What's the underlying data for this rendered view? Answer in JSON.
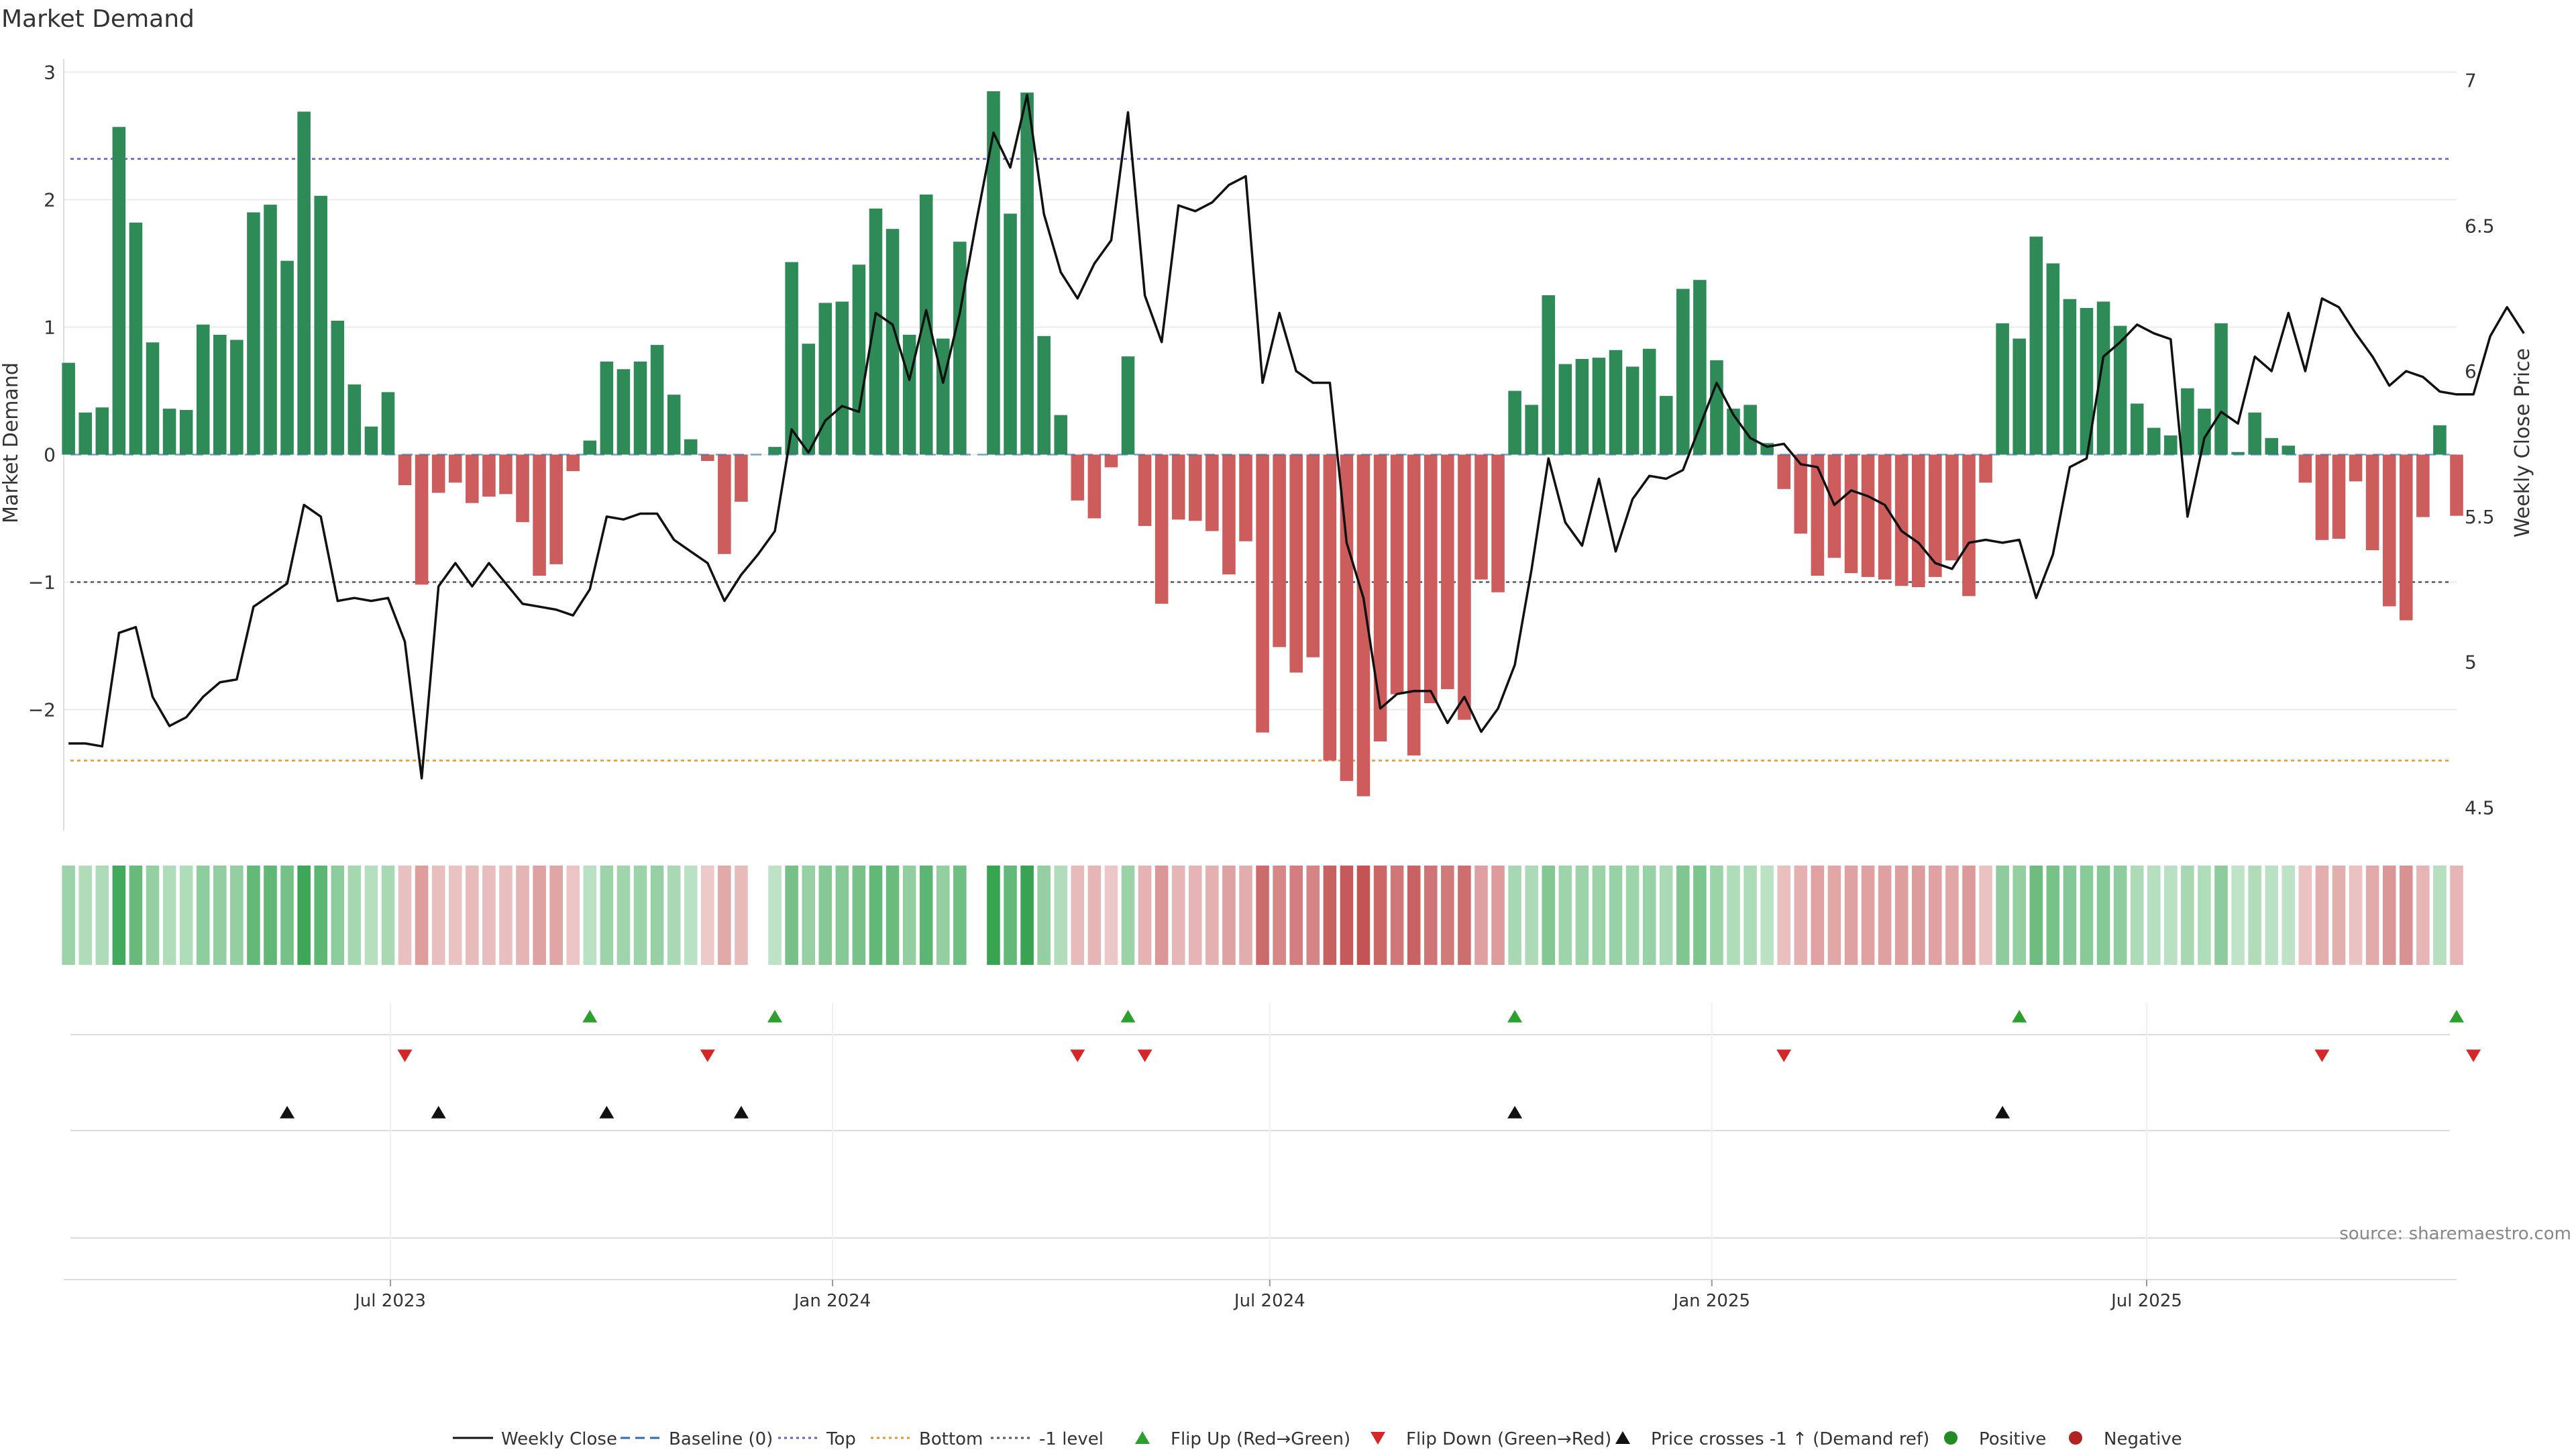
{
  "title": "Market Demand",
  "source": "source: sharemaestro.com",
  "chart_data": {
    "type": "bar",
    "ylabel_left": "Market Demand",
    "ylabel_right": "Weekly Close Price",
    "y_left_range": [
      -2.95,
      3.05
    ],
    "y_left_ticks": [
      3,
      2,
      1,
      0,
      -1,
      -2
    ],
    "y_left_tick_labels": [
      "3",
      "2",
      "1",
      "0",
      "−1",
      "−2"
    ],
    "y_right_range": [
      4.42,
      7.05
    ],
    "y_right_ticks": [
      7,
      6.5,
      6,
      5.5,
      5,
      4.5
    ],
    "y_right_tick_labels": [
      "7",
      "6.5",
      "6",
      "5.5",
      "5",
      "4.5"
    ],
    "x_range": [
      "2023-02-15",
      "2025-11-07"
    ],
    "x_ticks": [
      "2023-07-01",
      "2024-01-01",
      "2024-07-01",
      "2025-01-01",
      "2025-07-01"
    ],
    "x_tick_labels": [
      "Jul 2023",
      "Jan 2024",
      "Jul 2024",
      "Jan 2025",
      "Jul 2025"
    ],
    "grid": true,
    "reference_lines": [
      {
        "name": "Top",
        "value": 2.32,
        "color": "#6a5acd",
        "style": "dotted"
      },
      {
        "name": "Bottom",
        "value": -2.4,
        "color": "#e8962a",
        "style": "dotted"
      },
      {
        "name": "-1 level",
        "value": -1,
        "color": "#555566",
        "style": "dotted"
      },
      {
        "name": "Baseline (0)",
        "value": 0,
        "color": "#2b6cb0",
        "style": "dashed"
      }
    ],
    "colors": {
      "positive_bar": "#2e8b57",
      "negative_bar": "#cd5c5c",
      "price_line": "#111111",
      "flip_up": "#2ca02c",
      "flip_down": "#d62728",
      "price_cross": "#111111",
      "positive_dot": "#228b22",
      "negative_dot": "#b22222"
    },
    "start_date": "2023-02-17",
    "week_step_days": 7,
    "demand": [
      0.72,
      0.33,
      0.37,
      2.57,
      1.82,
      0.88,
      0.36,
      0.35,
      1.02,
      0.94,
      0.9,
      1.9,
      1.96,
      1.52,
      2.69,
      2.03,
      1.05,
      0.55,
      0.22,
      0.49,
      -0.24,
      -1.02,
      -0.3,
      -0.22,
      -0.38,
      -0.33,
      -0.31,
      -0.53,
      -0.95,
      -0.86,
      -0.13,
      0.11,
      0.73,
      0.67,
      0.73,
      0.86,
      0.47,
      0.12,
      -0.05,
      -0.78,
      -0.37,
      null,
      0.06,
      1.51,
      0.87,
      1.19,
      1.2,
      1.49,
      1.93,
      1.77,
      0.94,
      2.04,
      0.91,
      1.67,
      null,
      2.85,
      1.89,
      2.84,
      0.93,
      0.31,
      -0.36,
      -0.5,
      -0.1,
      0.77,
      -0.56,
      -1.17,
      -0.51,
      -0.52,
      -0.6,
      -0.94,
      -0.68,
      -2.18,
      -1.51,
      -1.71,
      -1.59,
      -2.4,
      -2.56,
      -2.68,
      -2.25,
      -1.88,
      -2.36,
      -1.95,
      -1.84,
      -2.08,
      -0.98,
      -1.08,
      0.5,
      0.39,
      1.25,
      0.71,
      0.75,
      0.76,
      0.82,
      0.69,
      0.83,
      0.46,
      1.3,
      1.37,
      0.74,
      0.36,
      0.39,
      0.09,
      -0.27,
      -0.62,
      -0.95,
      -0.81,
      -0.93,
      -0.96,
      -0.98,
      -1.03,
      -1.04,
      -0.96,
      -0.83,
      -1.11,
      -0.22,
      1.03,
      0.91,
      1.71,
      1.5,
      1.22,
      1.15,
      1.2,
      1.01,
      0.4,
      0.21,
      0.15,
      0.52,
      0.36,
      1.03,
      0.02,
      0.33,
      0.13,
      0.07,
      -0.22,
      -0.67,
      -0.66,
      -0.21,
      -0.75,
      -1.19,
      -1.3,
      -0.49,
      0.23,
      -0.48
    ],
    "weekly_close": [
      4.72,
      4.72,
      4.71,
      5.1,
      5.12,
      4.88,
      4.78,
      4.81,
      4.88,
      4.93,
      4.94,
      5.19,
      5.23,
      5.27,
      5.54,
      5.5,
      5.21,
      5.22,
      5.21,
      5.22,
      5.07,
      4.6,
      5.26,
      5.34,
      5.26,
      5.34,
      5.27,
      5.2,
      5.19,
      5.18,
      5.16,
      5.25,
      5.5,
      5.49,
      5.51,
      5.51,
      5.42,
      5.38,
      5.34,
      5.21,
      5.3,
      5.37,
      5.45,
      5.8,
      5.72,
      5.83,
      5.88,
      5.86,
      6.2,
      6.16,
      5.97,
      6.21,
      5.96,
      6.2,
      6.52,
      6.82,
      6.7,
      6.95,
      6.54,
      6.34,
      6.25,
      6.37,
      6.45,
      6.89,
      6.26,
      6.1,
      6.57,
      6.55,
      6.58,
      6.64,
      6.67,
      5.96,
      6.2,
      6.0,
      5.96,
      5.96,
      5.41,
      5.22,
      4.84,
      4.89,
      4.9,
      4.9,
      4.79,
      4.88,
      4.76,
      4.84,
      4.99,
      5.32,
      5.7,
      5.48,
      5.4,
      5.63,
      5.38,
      5.56,
      5.64,
      5.63,
      5.66,
      5.81,
      5.96,
      5.85,
      5.77,
      5.74,
      5.75,
      5.68,
      5.67,
      5.54,
      5.59,
      5.57,
      5.54,
      5.45,
      5.41,
      5.34,
      5.32,
      5.41,
      5.42,
      5.41,
      5.42,
      5.22,
      5.37,
      5.67,
      5.7,
      6.05,
      6.1,
      6.16,
      6.13,
      6.11,
      5.5,
      5.77,
      5.86,
      5.82,
      6.05,
      6.0,
      6.2,
      6.0,
      6.25,
      6.22,
      6.13,
      6.05,
      5.95,
      6.0,
      5.98,
      5.93,
      5.92,
      5.92,
      6.12,
      6.22,
      6.13
    ],
    "flip_up_weeks": [
      31,
      42,
      63,
      86,
      116,
      142
    ],
    "flip_down_weeks": [
      20,
      38,
      60,
      64,
      102,
      134,
      143
    ],
    "price_cross_weeks": [
      13,
      22,
      32,
      40,
      86,
      115
    ],
    "legend_position": "bottom",
    "legend": [
      "Weekly Close",
      "Baseline (0)",
      "Top",
      "Bottom",
      "-1 level",
      "Flip Up (Red→Green)",
      "Flip Down (Green→Red)",
      "Price crosses -1 ↑ (Demand ref)",
      "Positive",
      "Negative"
    ]
  }
}
